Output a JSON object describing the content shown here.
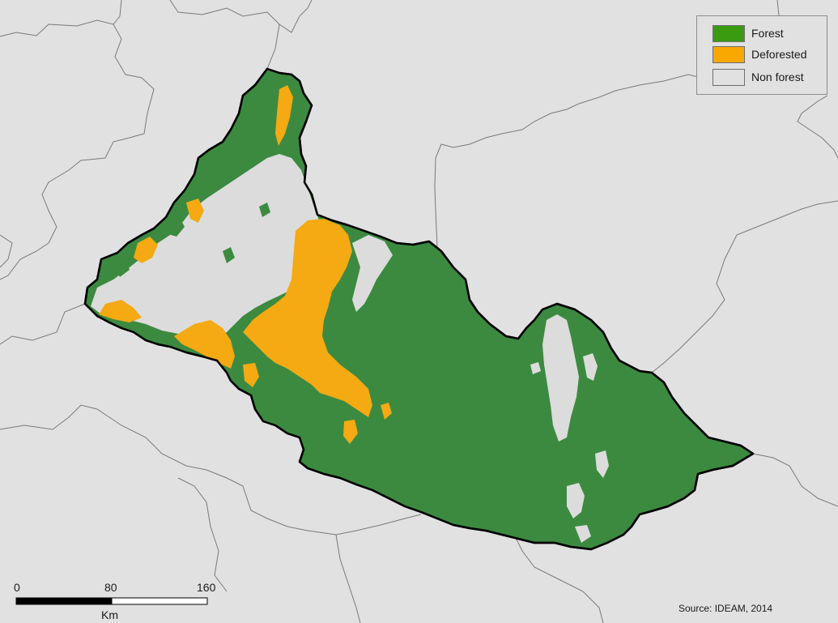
{
  "legend": {
    "items": [
      {
        "label": "Forest",
        "color": "#3a9b11"
      },
      {
        "label": "Deforested",
        "color": "#f8a800"
      },
      {
        "label": "Non forest",
        "color": "#e1e1e1"
      }
    ]
  },
  "map": {
    "background_color": "#e1e1e1",
    "boundary_line_color": "#7a7a7a",
    "region_outline_color": "#000000",
    "forest_fill_color": "#3c8a40",
    "deforested_color": "#f5a912",
    "nonforest_color": "#dcdcdc"
  },
  "scale_bar": {
    "ticks": [
      "0",
      "80",
      "160"
    ],
    "unit": "Km"
  },
  "source": "Source: IDEAM, 2014"
}
